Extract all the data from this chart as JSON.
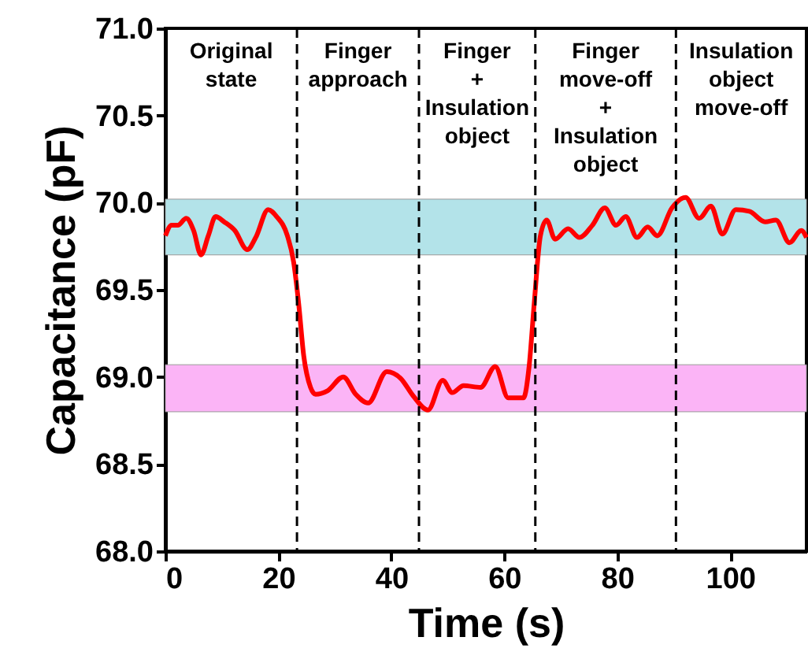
{
  "chart_data": {
    "type": "line",
    "xlabel": "Time (s)",
    "ylabel": "Capacitance (pF)",
    "x": [
      0,
      1.1,
      2.2,
      3.7,
      5.0,
      6.3,
      7.6,
      8.9,
      10.4,
      12.3,
      14.5,
      16.0,
      18.2,
      19.7,
      21.6,
      22.7,
      23.6,
      24.5,
      25.7,
      26.6,
      28.7,
      31.5,
      33.7,
      35.9,
      39.2,
      41.7,
      43.9,
      46.5,
      49.1,
      50.8,
      52.8,
      55.8,
      58.4,
      60.7,
      63.4,
      64.4,
      65.3,
      66.4,
      67.5,
      69.0,
      71.3,
      73.3,
      75.6,
      77.8,
      79.8,
      81.5,
      83.5,
      85.4,
      87.1,
      89.7,
      92.1,
      94.5,
      96.6,
      98.6,
      101.0,
      103.4,
      106.2,
      108.1,
      110.5,
      112.6,
      113.5
    ],
    "series": [
      {
        "color": "#ff0000",
        "values": [
          69.81,
          69.87,
          69.87,
          69.91,
          69.84,
          69.7,
          69.81,
          69.92,
          69.89,
          69.84,
          69.73,
          69.8,
          69.96,
          69.92,
          69.81,
          69.66,
          69.42,
          69.12,
          68.94,
          68.9,
          68.92,
          69.0,
          68.9,
          68.85,
          69.03,
          68.99,
          68.89,
          68.81,
          68.98,
          68.91,
          68.95,
          68.94,
          69.06,
          68.88,
          68.88,
          69.06,
          69.42,
          69.81,
          69.9,
          69.79,
          69.85,
          69.8,
          69.87,
          69.97,
          69.87,
          69.92,
          69.8,
          69.86,
          69.81,
          69.97,
          70.03,
          69.91,
          69.98,
          69.82,
          69.96,
          69.95,
          69.89,
          69.9,
          69.77,
          69.84,
          69.8
        ]
      }
    ],
    "xlim": [
      0,
      113.5
    ],
    "xticks": [
      0,
      20,
      40,
      60,
      80,
      100
    ],
    "ylim": [
      68,
      71
    ],
    "yticks": [
      {
        "value": 68,
        "label": "68.0"
      },
      {
        "value": 68.5,
        "label": "68.5"
      },
      {
        "value": 69,
        "label": "69.0"
      },
      {
        "value": 69.5,
        "label": "69.5"
      },
      {
        "value": 70,
        "label": "70.0"
      },
      {
        "value": 70.5,
        "label": "70.5"
      },
      {
        "value": 71,
        "label": "71.0"
      }
    ],
    "bands": [
      {
        "axis": "y",
        "from": 69.7,
        "to": 70.02,
        "color": "#b3e3e9"
      },
      {
        "axis": "y",
        "from": 68.8,
        "to": 69.07,
        "color": "#fbb4f6"
      }
    ],
    "ref_lines": [
      {
        "axis": "x",
        "value": 23.3,
        "color": "#000000",
        "line_style": "dashed"
      },
      {
        "axis": "x",
        "value": 44.9,
        "color": "#000000",
        "line_style": "dashed"
      },
      {
        "axis": "x",
        "value": 65.5,
        "color": "#000000",
        "line_style": "dashed"
      },
      {
        "axis": "x",
        "value": 90.4,
        "color": "#000000",
        "line_style": "dashed"
      }
    ],
    "annotations": [
      "Original\nstate",
      "Finger\napproach",
      "Finger\n+\nInsulation\nobject",
      "Finger\nmove-off\n+\nInsulation\nobject",
      "Insulation\nobject\nmove-off"
    ],
    "grid": false,
    "marker": "none",
    "line_style": "solid"
  }
}
